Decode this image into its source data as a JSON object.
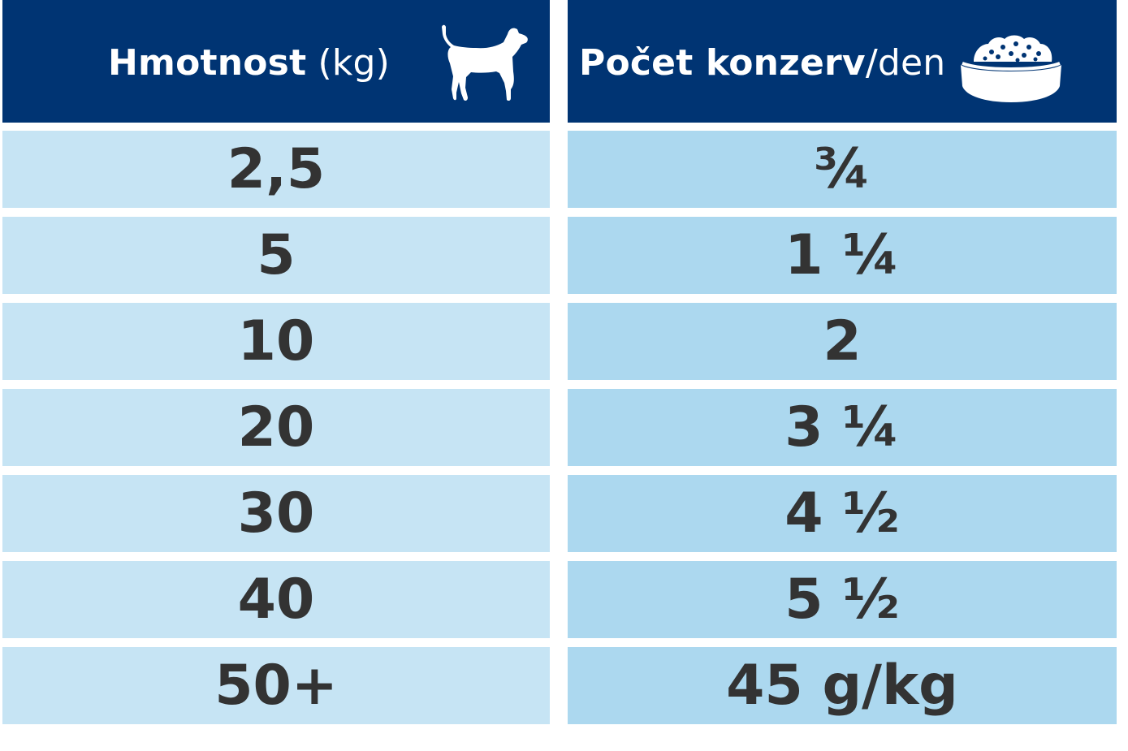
{
  "header": {
    "weight_bold": "Hmotnost",
    "weight_unit": " (kg)",
    "cans_bold": "Počet konzerv",
    "cans_unit": "/den",
    "dog_icon": "dog-icon",
    "bowl_icon": "food-bowl-icon"
  },
  "rows": [
    {
      "weight": "2,5",
      "cans": "¾"
    },
    {
      "weight": "5",
      "cans": "1 ¼"
    },
    {
      "weight": "10",
      "cans": "2"
    },
    {
      "weight": "20",
      "cans": "3 ¼"
    },
    {
      "weight": "30",
      "cans": "4 ½"
    },
    {
      "weight": "40",
      "cans": "5 ½"
    },
    {
      "weight": "50+",
      "cans": "45 g/kg"
    }
  ],
  "colors": {
    "header_bg": "#003473",
    "left_cell_bg": "#c6e4f4",
    "right_cell_bg": "#acd8ef",
    "value_text": "#333333",
    "header_text": "#ffffff"
  }
}
